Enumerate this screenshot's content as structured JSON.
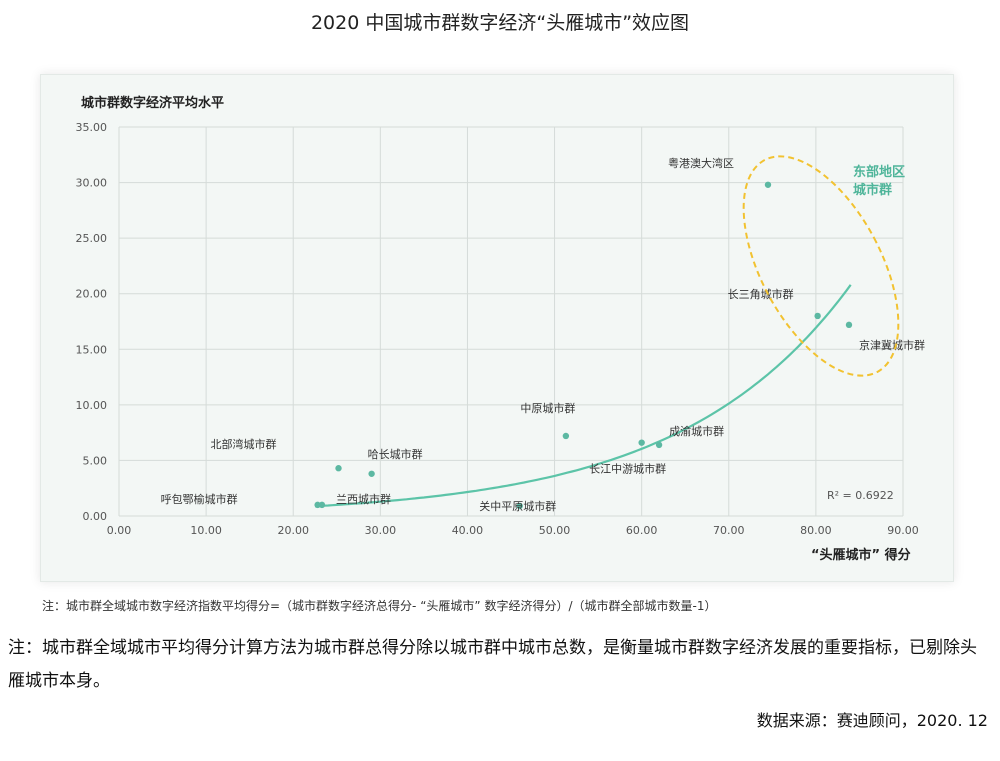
{
  "page": {
    "title": "2020 中国城市群数字经济“头雁城市”效应图",
    "chart_note": "注：城市群全域城市数字经济指数平均得分=（城市群数字经济总得分- “头雁城市” 数字经济得分）/（城市群全部城市数量-1）",
    "footnote": "注：城市群全域城市平均得分计算方法为城市群总得分除以城市群中城市总数，是衡量城市群数字经济发展的重要指标，已剔除头雁城市本身。",
    "source": "数据来源：赛迪顾问，2020. 12"
  },
  "chart_data": {
    "type": "scatter",
    "ylabel": "城市群数字经济平均水平",
    "xlabel": "“头雁城市” 得分",
    "xlim": [
      0,
      90
    ],
    "ylim": [
      0,
      35
    ],
    "x_ticks": [
      "0.00",
      "10.00",
      "20.00",
      "30.00",
      "40.00",
      "50.00",
      "60.00",
      "70.00",
      "80.00",
      "90.00"
    ],
    "y_ticks": [
      "0.00",
      "5.00",
      "10.00",
      "15.00",
      "20.00",
      "25.00",
      "30.00",
      "35.00"
    ],
    "grid": true,
    "point_color": "#5cb8a2",
    "trend_color": "#5cc4a8",
    "points": [
      {
        "label": "粤港澳大湾区",
        "x": 74.5,
        "y": 29.8
      },
      {
        "label": "长三角城市群",
        "x": 80.2,
        "y": 18.0
      },
      {
        "label": "京津冀城市群",
        "x": 83.8,
        "y": 17.2
      },
      {
        "label": "中原城市群",
        "x": 51.3,
        "y": 7.2
      },
      {
        "label": "成渝城市群",
        "x": 62.0,
        "y": 6.4
      },
      {
        "label": "长江中游城市群",
        "x": 60.0,
        "y": 6.6
      },
      {
        "label": "哈长城市群",
        "x": 29.0,
        "y": 3.8
      },
      {
        "label": "北部湾城市群",
        "x": 25.2,
        "y": 4.3
      },
      {
        "label": "兰西城市群",
        "x": 23.3,
        "y": 1.0
      },
      {
        "label": "呼包鄂榆城市群",
        "x": 22.8,
        "y": 1.0
      },
      {
        "label": "关中平原城市群",
        "x": 46.0,
        "y": 0.9
      }
    ],
    "trendline": {
      "type": "exponential",
      "a": 0.275,
      "b": 0.0515,
      "x_range": [
        22.5,
        84
      ],
      "r2_label": "R² = 0.6922"
    },
    "annotation": {
      "line1": "东部地区",
      "line2": "城市群",
      "color": "#4fb59a",
      "ellipse_color": "#f2c230"
    }
  }
}
